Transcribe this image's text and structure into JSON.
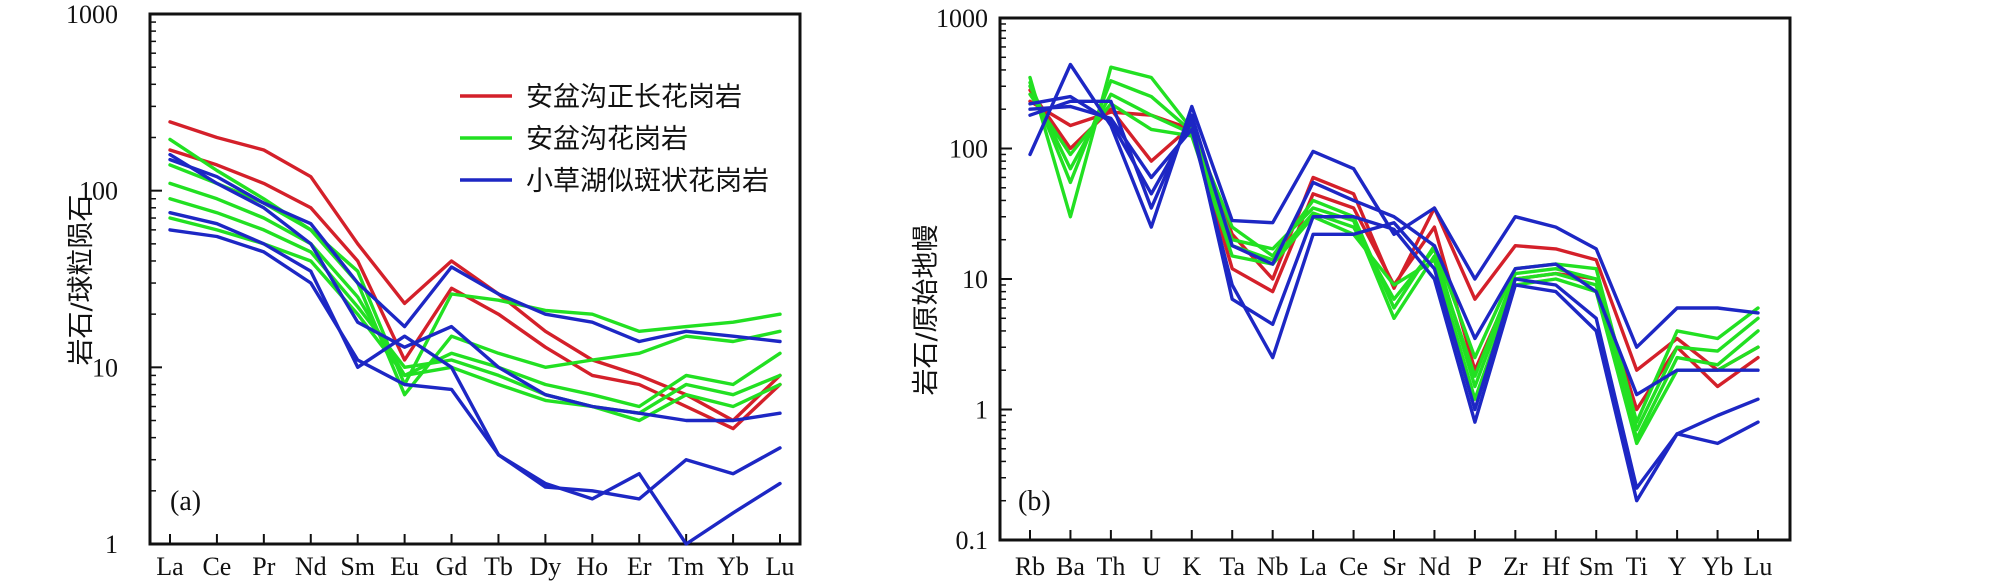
{
  "colors": {
    "red": "#d4202a",
    "green": "#22e022",
    "blue": "#1d27c4",
    "frame": "#111111"
  },
  "chart_data": [
    {
      "type": "line",
      "panel_label": "(a)",
      "ylabel": "岩石/球粒陨石",
      "yscale": "log",
      "ylim": [
        1,
        1000
      ],
      "yticks": [
        "1",
        "10",
        "100",
        "1000"
      ],
      "categories": [
        "La",
        "Ce",
        "Pr",
        "Nd",
        "Sm",
        "Eu",
        "Gd",
        "Tb",
        "Dy",
        "Ho",
        "Er",
        "Tm",
        "Yb",
        "Lu"
      ],
      "legend": [
        {
          "label": "安盆沟正长花岗岩",
          "color": "red"
        },
        {
          "label": "安盆沟花岗岩",
          "color": "green"
        },
        {
          "label": "小草湖似斑状花岗岩",
          "color": "blue"
        }
      ],
      "series": [
        {
          "name": "安盆沟正长花岗岩",
          "color": "red",
          "values": [
            245,
            200,
            170,
            120,
            50,
            23,
            40,
            26,
            16,
            11,
            9,
            7,
            5,
            9
          ]
        },
        {
          "name": "安盆沟正长花岗岩",
          "color": "red",
          "values": [
            170,
            140,
            110,
            80,
            40,
            11,
            28,
            20,
            13,
            9,
            8,
            6,
            4.5,
            8
          ]
        },
        {
          "name": "安盆沟花岗岩",
          "color": "green",
          "values": [
            195,
            130,
            90,
            60,
            35,
            8,
            26,
            24,
            21,
            20,
            16,
            17,
            18,
            20
          ]
        },
        {
          "name": "安盆沟花岗岩",
          "color": "green",
          "values": [
            140,
            110,
            85,
            60,
            30,
            7,
            15,
            12,
            10,
            11,
            12,
            15,
            14,
            16
          ]
        },
        {
          "name": "安盆沟花岗岩",
          "color": "green",
          "values": [
            110,
            90,
            70,
            50,
            25,
            9,
            12,
            10,
            8,
            7,
            6,
            9,
            8,
            12
          ]
        },
        {
          "name": "安盆沟花岗岩",
          "color": "green",
          "values": [
            90,
            75,
            60,
            45,
            22,
            10,
            11,
            9,
            7,
            6,
            5.5,
            8,
            7,
            9
          ]
        },
        {
          "name": "安盆沟花岗岩",
          "color": "green",
          "values": [
            70,
            60,
            50,
            40,
            20,
            9,
            10,
            8,
            6.5,
            6,
            5,
            7,
            6,
            8
          ]
        },
        {
          "name": "小草湖似斑状花岗岩",
          "color": "blue",
          "values": [
            150,
            120,
            85,
            65,
            30,
            17,
            37,
            26,
            20,
            18,
            14,
            16,
            15,
            14
          ]
        },
        {
          "name": "小草湖似斑状花岗岩",
          "color": "blue",
          "values": [
            160,
            110,
            80,
            50,
            18,
            13,
            17,
            10,
            7,
            6,
            5.5,
            5,
            5,
            5.5
          ]
        },
        {
          "name": "小草湖似斑状花岗岩",
          "color": "blue",
          "values": [
            75,
            65,
            50,
            35,
            10,
            15,
            10,
            3.2,
            2.1,
            2,
            1.8,
            3,
            2.5,
            3.5
          ]
        },
        {
          "name": "小草湖似斑状花岗岩",
          "color": "blue",
          "values": [
            60,
            55,
            45,
            30,
            11,
            8,
            7.5,
            3.2,
            2.2,
            1.8,
            2.5,
            1,
            1.5,
            2.2
          ]
        }
      ]
    },
    {
      "type": "line",
      "panel_label": "(b)",
      "ylabel": "岩石/原始地幔",
      "yscale": "log",
      "ylim": [
        0.1,
        1000
      ],
      "yticks": [
        "0.1",
        "1",
        "10",
        "100",
        "1000"
      ],
      "categories": [
        "Rb",
        "Ba",
        "Th",
        "U",
        "K",
        "Ta",
        "Nb",
        "La",
        "Ce",
        "Sr",
        "Nd",
        "P",
        "Zr",
        "Hf",
        "Sm",
        "Ti",
        "Y",
        "Yb",
        "Lu"
      ],
      "series": [
        {
          "name": "安盆沟正长花岗岩",
          "color": "red",
          "values": [
            280,
            100,
            200,
            80,
            150,
            22,
            10,
            60,
            45,
            8.5,
            35,
            7,
            18,
            17,
            14,
            2,
            3.5,
            2,
            3
          ]
        },
        {
          "name": "安盆沟正长花岗岩",
          "color": "red",
          "values": [
            230,
            150,
            190,
            180,
            140,
            12,
            8,
            45,
            35,
            9,
            25,
            2,
            10,
            11,
            10,
            1,
            3,
            1.5,
            2.5
          ]
        },
        {
          "name": "安盆沟花岗岩",
          "color": "green",
          "values": [
            350,
            30,
            420,
            350,
            140,
            25,
            15,
            40,
            30,
            6,
            18,
            2.5,
            12,
            13,
            12,
            0.8,
            4,
            3.5,
            6
          ]
        },
        {
          "name": "安盆沟花岗岩",
          "color": "green",
          "values": [
            320,
            55,
            330,
            250,
            135,
            20,
            17,
            35,
            28,
            5,
            15,
            1.8,
            11,
            12,
            10,
            0.7,
            3,
            2.8,
            5
          ]
        },
        {
          "name": "安盆沟花岗岩",
          "color": "green",
          "values": [
            300,
            70,
            260,
            180,
            130,
            18,
            14,
            32,
            25,
            7,
            17,
            1.5,
            10,
            11,
            9,
            0.6,
            2.5,
            2.2,
            4
          ]
        },
        {
          "name": "安盆沟花岗岩",
          "color": "green",
          "values": [
            260,
            90,
            220,
            140,
            125,
            15,
            13,
            30,
            22,
            9,
            14,
            1.2,
            9,
            10,
            8,
            0.55,
            2,
            2,
            3
          ]
        },
        {
          "name": "小草湖似斑状花岗岩",
          "color": "blue",
          "values": [
            90,
            440,
            150,
            25,
            210,
            28,
            27,
            95,
            70,
            22,
            35,
            10,
            30,
            25,
            17,
            3,
            6,
            6,
            5.5
          ]
        },
        {
          "name": "小草湖似斑状花岗岩",
          "color": "blue",
          "values": [
            180,
            230,
            230,
            35,
            180,
            18,
            13,
            55,
            40,
            30,
            18,
            3.5,
            12,
            13,
            8,
            1.3,
            2,
            2,
            2
          ]
        },
        {
          "name": "小草湖似斑状花岗岩",
          "color": "blue",
          "values": [
            220,
            250,
            160,
            45,
            160,
            7,
            4.5,
            30,
            30,
            24,
            10,
            0.8,
            9,
            8,
            4,
            0.2,
            0.65,
            0.55,
            0.8
          ]
        },
        {
          "name": "小草湖似斑状花岗岩",
          "color": "blue",
          "values": [
            200,
            210,
            170,
            60,
            140,
            9,
            2.5,
            22,
            22,
            27,
            12,
            1,
            10,
            9,
            5,
            0.25,
            0.65,
            0.9,
            1.2
          ]
        }
      ]
    }
  ]
}
